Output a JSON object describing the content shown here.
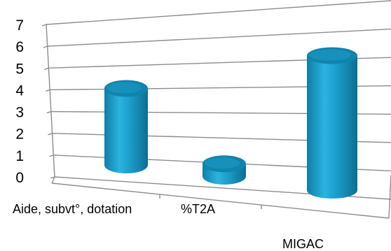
{
  "chart_data": {
    "type": "bar",
    "style": "3d-cylinder",
    "categories": [
      "Aide, subvt°, dotation",
      "%T2A",
      "MIGAC"
    ],
    "values": [
      3.7,
      0.6,
      6.5
    ],
    "ylim": [
      0,
      7
    ],
    "yticks": [
      "0",
      "1",
      "2",
      "3",
      "4",
      "5",
      "6",
      "7"
    ],
    "grid": true,
    "title": "",
    "xlabel": "",
    "ylabel": "",
    "bar_color": "#1a9cc9"
  }
}
